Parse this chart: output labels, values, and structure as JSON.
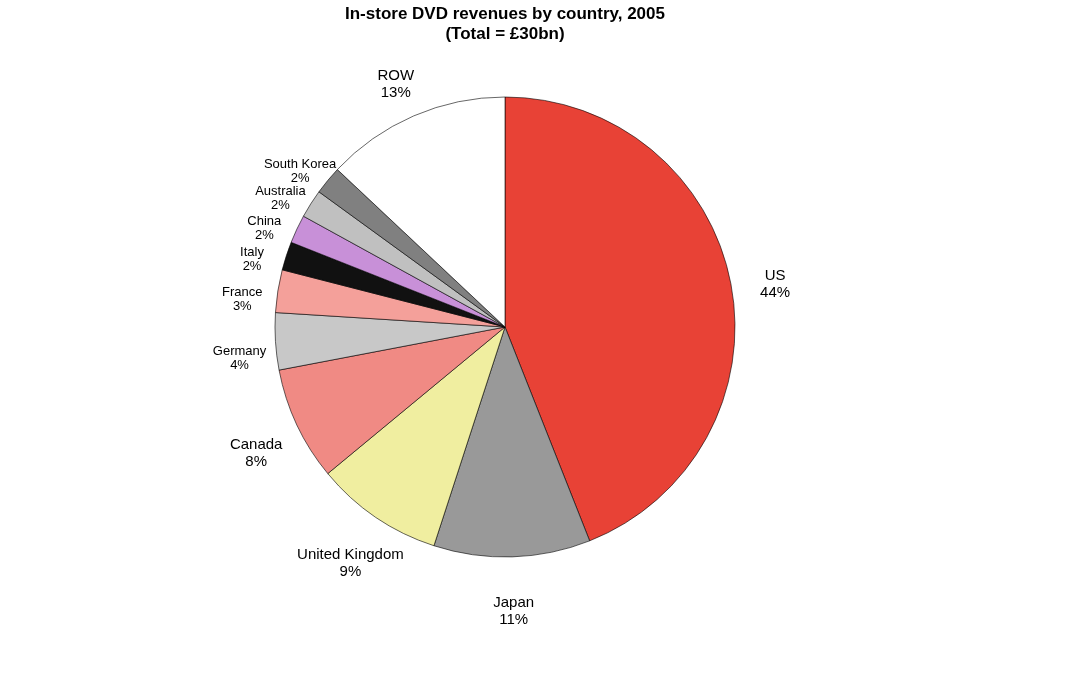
{
  "chart_data": {
    "type": "pie",
    "title": "In-store DVD revenues by country, 2005",
    "subtitle": "(Total = £30bn)",
    "categories": [
      "US",
      "Japan",
      "United Kingdom",
      "Canada",
      "Germany",
      "France",
      "Italy",
      "China",
      "Australia",
      "South Korea",
      "ROW"
    ],
    "values": [
      44,
      11,
      9,
      8,
      4,
      3,
      2,
      2,
      2,
      2,
      13
    ],
    "value_labels": [
      "44%",
      "11%",
      "9%",
      "8%",
      "4%",
      "3%",
      "2%",
      "2%",
      "2%",
      "2%",
      "13%"
    ],
    "colors": [
      "#e84236",
      "#999999",
      "#f0eea0",
      "#f08a84",
      "#c8c8c8",
      "#f4a09a",
      "#111111",
      "#c890d8",
      "#c0c0c0",
      "#808080",
      "#ffffff"
    ]
  }
}
